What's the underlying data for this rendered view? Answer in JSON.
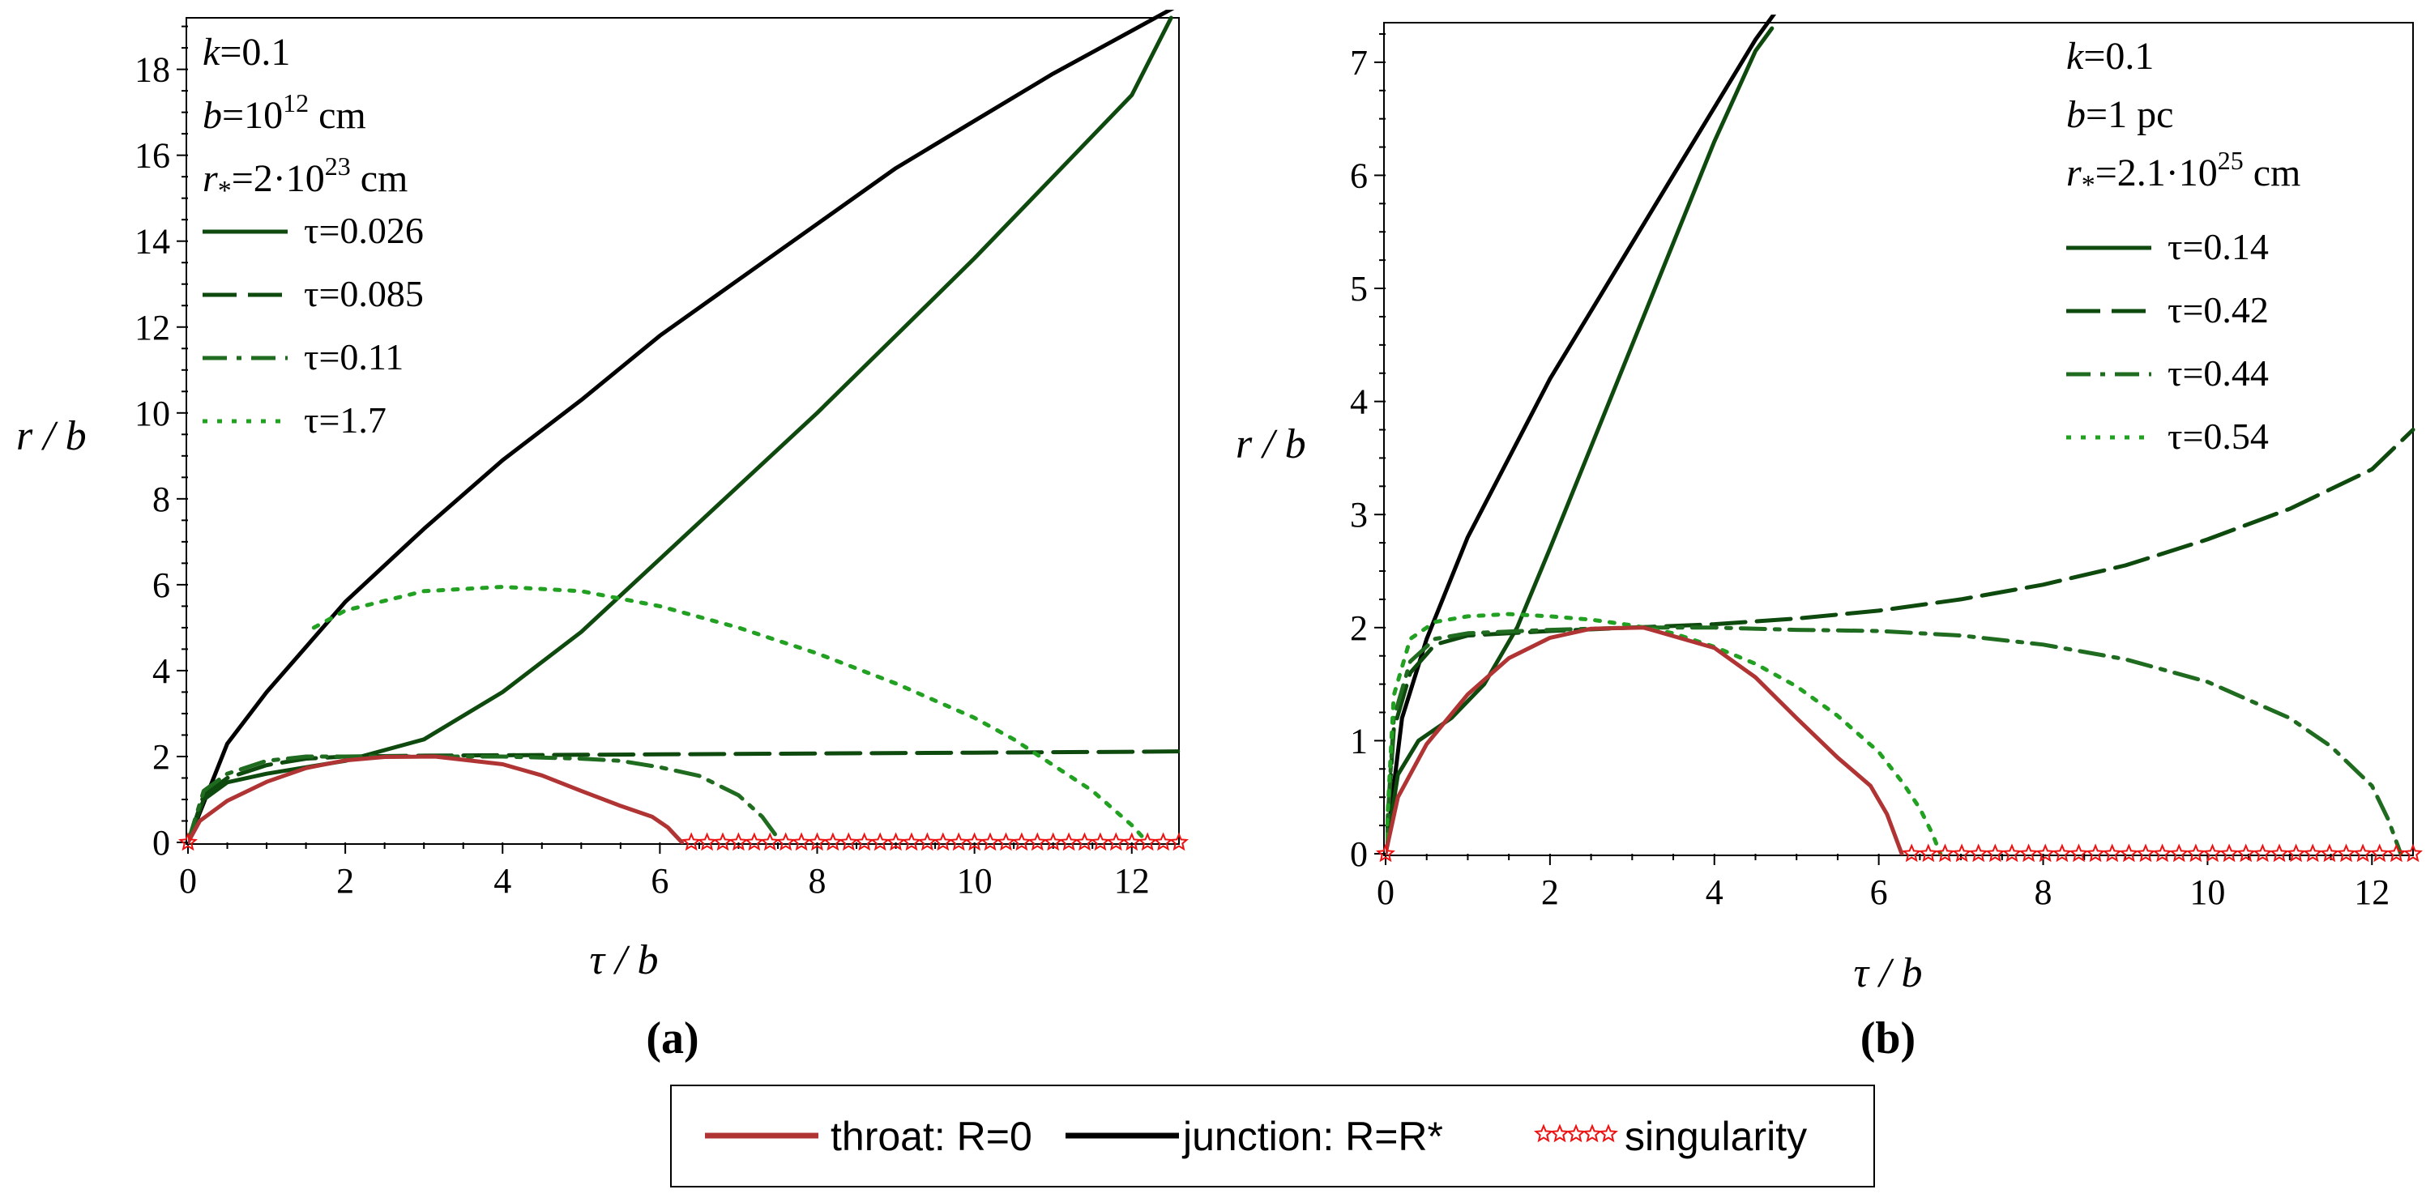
{
  "colors": {
    "dark_green": "#0e4a0e",
    "mid_green": "#1f6b1f",
    "bright_green": "#22a022",
    "throat": "#b03434",
    "junction": "#000000",
    "singularity": "#ee1111"
  },
  "chart_data": [
    {
      "type": "line",
      "id": "a",
      "panel_label": "(a)",
      "xlabel": "τ / b",
      "ylabel": "r / b",
      "xlim": [
        0,
        12.6
      ],
      "ylim": [
        0,
        19.2
      ],
      "xticks": [
        "0",
        "2",
        "4",
        "6",
        "8",
        "10",
        "12"
      ],
      "yticks": [
        "0",
        "2",
        "4",
        "6",
        "8",
        "10",
        "12",
        "14",
        "16",
        "18"
      ],
      "params": [
        {
          "sym": "k",
          "text": "=0.1"
        },
        {
          "sym": "b",
          "text": "=10",
          "sup": "12",
          "tail": " cm"
        },
        {
          "sym": "r",
          "sub": "*",
          "text": "=2·10",
          "sup": "23",
          "tail": " cm"
        }
      ],
      "legend": [
        "τ=0.026",
        "τ=0.085",
        "τ=0.11",
        "τ=1.7"
      ],
      "series": [
        {
          "name": "junction: R=R*",
          "style": "junction",
          "x": [
            0,
            0.5,
            1,
            2,
            3,
            4,
            5,
            6,
            7,
            8,
            9,
            10,
            11,
            12,
            12.6
          ],
          "y": [
            0,
            2.3,
            3.5,
            5.6,
            7.3,
            8.9,
            10.3,
            11.8,
            13.1,
            14.4,
            15.7,
            16.8,
            17.9,
            18.9,
            19.5
          ]
        },
        {
          "name": "τ=0.026",
          "style": "solid",
          "x": [
            0,
            0.2,
            0.5,
            1,
            2,
            3,
            4,
            5,
            6,
            7,
            8,
            9,
            10,
            11,
            12,
            12.5
          ],
          "y": [
            0,
            1.0,
            1.4,
            1.6,
            1.9,
            2.4,
            3.5,
            4.9,
            6.6,
            8.3,
            10.0,
            11.8,
            13.6,
            15.5,
            17.4,
            19.2
          ]
        },
        {
          "name": "τ=0.085",
          "style": "dash",
          "x": [
            0,
            0.2,
            0.5,
            1,
            1.5,
            2,
            3,
            4,
            6,
            8,
            10,
            12,
            12.6
          ],
          "y": [
            0,
            1.1,
            1.5,
            1.8,
            1.95,
            2.0,
            2.02,
            2.03,
            2.05,
            2.07,
            2.09,
            2.11,
            2.12
          ]
        },
        {
          "name": "τ=0.11",
          "style": "dashdot",
          "x": [
            0,
            0.2,
            0.5,
            1,
            1.5,
            2,
            3,
            4,
            5,
            5.5,
            6,
            6.5,
            7,
            7.3,
            7.5
          ],
          "y": [
            0,
            1.2,
            1.6,
            1.9,
            2.0,
            2.0,
            2.0,
            2.0,
            1.95,
            1.9,
            1.75,
            1.55,
            1.1,
            0.6,
            0.1
          ]
        },
        {
          "name": "τ=1.7",
          "style": "dot",
          "x": [
            1.6,
            2,
            3,
            4,
            5,
            6,
            7,
            8,
            9,
            10,
            10.5,
            11,
            11.5,
            12,
            12.2
          ],
          "y": [
            5.0,
            5.4,
            5.85,
            5.95,
            5.85,
            5.5,
            5.0,
            4.4,
            3.7,
            2.9,
            2.4,
            1.8,
            1.2,
            0.4,
            0
          ]
        },
        {
          "name": "throat: R=0",
          "style": "throat",
          "x": [
            0,
            0.15,
            0.5,
            1,
            1.5,
            2,
            2.5,
            3.14,
            4,
            4.5,
            5,
            5.5,
            5.9,
            6.1,
            6.28
          ],
          "y": [
            0,
            0.5,
            0.97,
            1.41,
            1.73,
            1.91,
            1.99,
            2.0,
            1.82,
            1.56,
            1.2,
            0.85,
            0.6,
            0.35,
            0
          ]
        },
        {
          "name": "singularity",
          "style": "singularity",
          "x_start": 6.4,
          "x_end": 12.6,
          "y": 0
        }
      ]
    },
    {
      "type": "line",
      "id": "b",
      "panel_label": "(b)",
      "xlabel": "τ / b",
      "ylabel": "r / b",
      "xlim": [
        0,
        12.5
      ],
      "ylim": [
        0,
        7.35
      ],
      "xticks": [
        "0",
        "2",
        "4",
        "6",
        "8",
        "10",
        "12"
      ],
      "yticks": [
        "0",
        "1",
        "2",
        "3",
        "4",
        "5",
        "6",
        "7"
      ],
      "params": [
        {
          "sym": "k",
          "text": "=0.1"
        },
        {
          "sym": "b",
          "text": "=1 pc"
        },
        {
          "sym": "r",
          "sub": "*",
          "text": "=2.1·10",
          "sup": "25",
          "tail": " cm"
        }
      ],
      "legend": [
        "τ=0.14",
        "τ=0.42",
        "τ=0.44",
        "τ=0.54"
      ],
      "series": [
        {
          "name": "junction: R=R*",
          "style": "junction",
          "x": [
            0,
            0.2,
            0.5,
            1,
            1.5,
            2,
            2.5,
            3,
            3.5,
            4,
            4.5,
            4.8
          ],
          "y": [
            0,
            1.2,
            1.9,
            2.8,
            3.5,
            4.2,
            4.8,
            5.4,
            6.0,
            6.6,
            7.2,
            7.5
          ]
        },
        {
          "name": "τ=0.14",
          "style": "solid",
          "x": [
            0,
            0.15,
            0.4,
            0.8,
            1.2,
            1.6,
            2,
            2.5,
            3,
            3.5,
            4,
            4.5,
            4.7
          ],
          "y": [
            0,
            0.7,
            1.0,
            1.2,
            1.5,
            2.0,
            2.7,
            3.6,
            4.5,
            5.4,
            6.3,
            7.1,
            7.3
          ]
        },
        {
          "name": "τ=0.42",
          "style": "dash",
          "x": [
            0,
            0.1,
            0.3,
            0.6,
            1,
            2,
            3,
            4,
            5,
            6,
            7,
            8,
            9,
            10,
            11,
            12,
            12.5
          ],
          "y": [
            0,
            1.1,
            1.6,
            1.85,
            1.93,
            1.97,
            2.0,
            2.03,
            2.08,
            2.15,
            2.25,
            2.38,
            2.55,
            2.78,
            3.05,
            3.4,
            3.75
          ]
        },
        {
          "name": "τ=0.44",
          "style": "dashdot",
          "x": [
            0,
            0.1,
            0.3,
            0.6,
            1,
            2,
            3,
            4,
            5,
            6,
            7,
            8,
            9,
            10,
            11,
            11.5,
            12,
            12.2,
            12.35
          ],
          "y": [
            0,
            1.2,
            1.7,
            1.9,
            1.95,
            1.98,
            2.0,
            2.0,
            1.98,
            1.97,
            1.93,
            1.85,
            1.72,
            1.52,
            1.2,
            0.95,
            0.6,
            0.3,
            0
          ]
        },
        {
          "name": "τ=0.54",
          "style": "dot",
          "x": [
            0,
            0.1,
            0.3,
            0.6,
            1,
            1.5,
            2,
            2.5,
            3,
            3.5,
            4,
            4.5,
            5,
            5.5,
            6,
            6.3,
            6.5,
            6.65,
            6.75
          ],
          "y": [
            0,
            1.4,
            1.9,
            2.05,
            2.1,
            2.12,
            2.1,
            2.07,
            2.02,
            1.95,
            1.83,
            1.68,
            1.48,
            1.22,
            0.9,
            0.62,
            0.4,
            0.18,
            0
          ]
        },
        {
          "name": "throat: R=0",
          "style": "throat",
          "x": [
            0,
            0.15,
            0.5,
            1,
            1.5,
            2,
            2.5,
            3.14,
            4,
            4.5,
            5,
            5.5,
            5.9,
            6.1,
            6.28
          ],
          "y": [
            0,
            0.5,
            0.97,
            1.41,
            1.73,
            1.91,
            1.99,
            2.0,
            1.82,
            1.56,
            1.2,
            0.85,
            0.6,
            0.35,
            0
          ]
        },
        {
          "name": "singularity",
          "style": "singularity",
          "x_start": 6.4,
          "x_end": 12.5,
          "y": 0
        }
      ]
    }
  ],
  "bottom_legend": {
    "throat": "throat: R=0",
    "junction": "junction: R=R*",
    "singularity": "singularity"
  }
}
